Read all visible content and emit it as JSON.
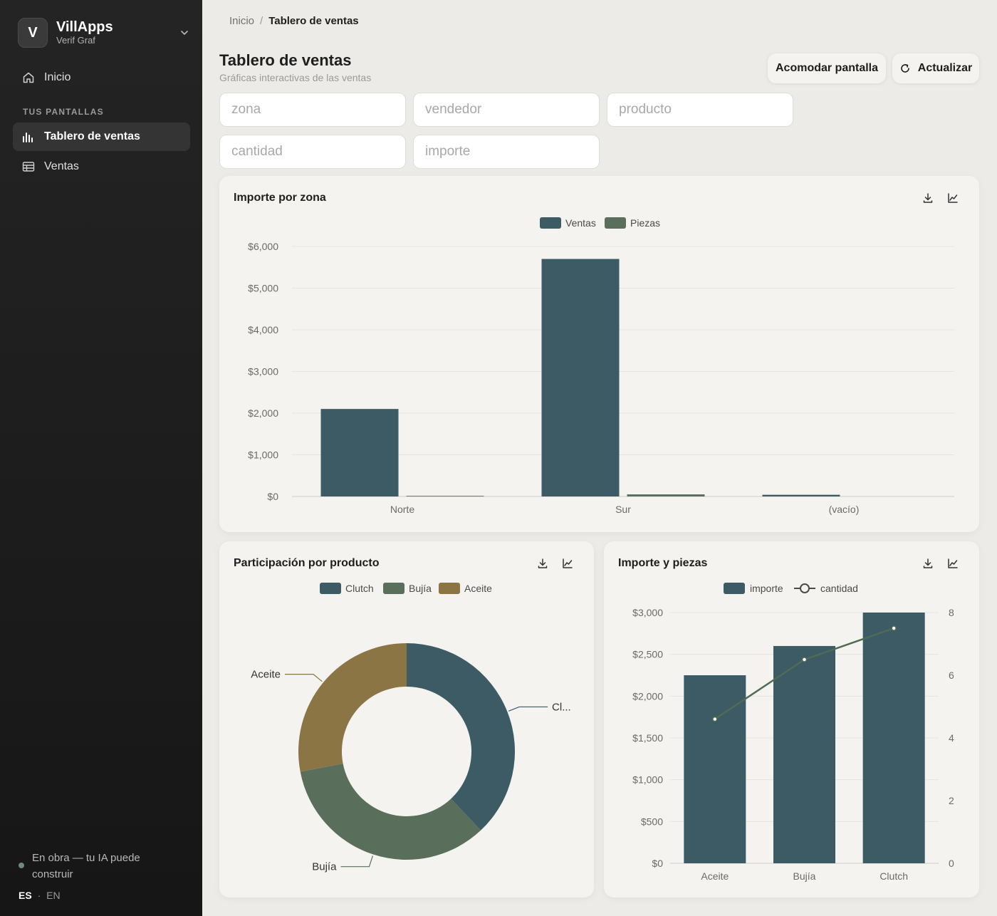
{
  "app": {
    "logo_letter": "V",
    "name": "VillApps",
    "subtitle": "Verif Graf"
  },
  "sidebar": {
    "home_label": "Inicio",
    "section_label": "TUS PANTALLAS",
    "items": [
      {
        "label": "Tablero de ventas",
        "icon": "bar-chart-icon",
        "active": true
      },
      {
        "label": "Ventas",
        "icon": "table-icon",
        "active": false
      }
    ],
    "status_text": "En obra — tu IA puede construir",
    "status_color": "#6f8a78",
    "lang_active": "ES",
    "lang_separator": "·",
    "lang_other": "EN"
  },
  "breadcrumb": {
    "root": "Inicio",
    "separator": "/",
    "current": "Tablero de ventas"
  },
  "header": {
    "title": "Tablero de ventas",
    "subtitle": "Gráficas interactivas de las ventas",
    "arrange_label": "Acomodar pantalla",
    "refresh_label": "Actualizar"
  },
  "filters": {
    "zona": "zona",
    "vendedor": "vendedor",
    "producto": "producto",
    "cantidad": "cantidad",
    "importe": "importe"
  },
  "colors": {
    "ventas": "#3c5b65",
    "piezas": "#5a6e5c",
    "aceite": "#8b7545",
    "line": "#506b55"
  },
  "cards": {
    "zona": {
      "title": "Importe por zona"
    },
    "producto": {
      "title": "Participación por producto"
    },
    "piezas": {
      "title": "Importe y piezas"
    }
  },
  "chart_data": [
    {
      "type": "bar",
      "title": "Importe por zona",
      "categories": [
        "Norte",
        "Sur",
        "(vacío)"
      ],
      "series": [
        {
          "name": "Ventas",
          "values": [
            2100,
            5700,
            40
          ]
        },
        {
          "name": "Piezas",
          "values": [
            15,
            50,
            0
          ]
        }
      ],
      "ylim": [
        0,
        6000
      ],
      "yticks": [
        "$0",
        "$1,000",
        "$2,000",
        "$3,000",
        "$4,000",
        "$5,000",
        "$6,000"
      ],
      "grid": true,
      "legend": "top-center"
    },
    {
      "type": "pie",
      "title": "Participación por producto",
      "donut": true,
      "labels": [
        "Clutch",
        "Bujía",
        "Aceite"
      ],
      "values": [
        38,
        34,
        28
      ],
      "slice_labels": [
        "Cl...",
        "Bujía",
        "Aceite"
      ],
      "legend": "top-center"
    },
    {
      "type": "bar",
      "title": "Importe y piezas",
      "categories": [
        "Aceite",
        "Bujía",
        "Clutch"
      ],
      "series": [
        {
          "name": "importe",
          "values": [
            2250,
            2600,
            3000
          ],
          "axis": "left"
        },
        {
          "name": "cantidad",
          "values": [
            4.6,
            6.5,
            7.5
          ],
          "axis": "right",
          "type": "line"
        }
      ],
      "ylim": [
        0,
        3000
      ],
      "yticks": [
        "$0",
        "$500",
        "$1,000",
        "$1,500",
        "$2,000",
        "$2,500",
        "$3,000"
      ],
      "y2lim": [
        0,
        8
      ],
      "y2ticks": [
        "0",
        "2",
        "4",
        "6",
        "8"
      ],
      "legend": "top-center"
    }
  ]
}
